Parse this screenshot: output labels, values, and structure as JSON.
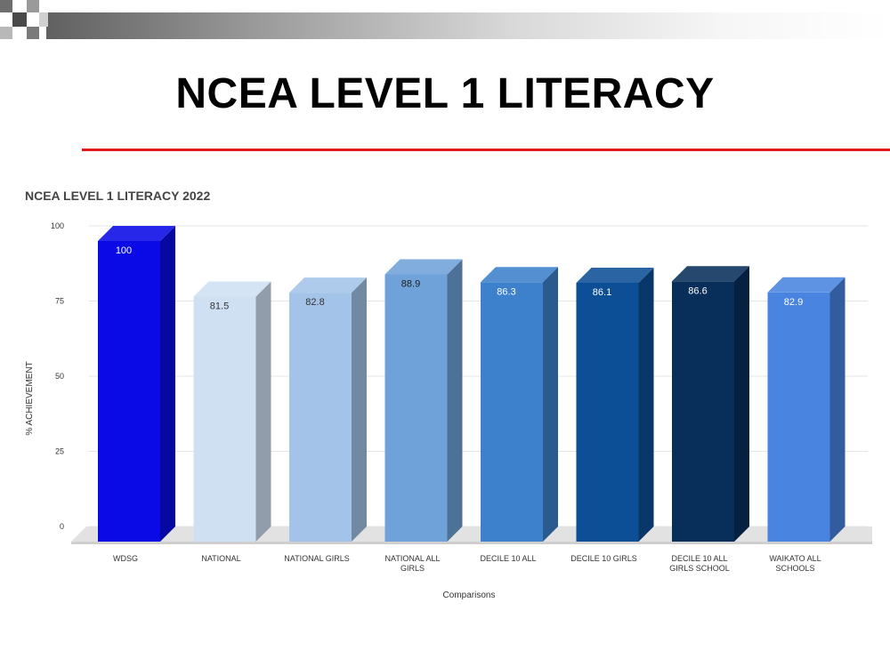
{
  "slide": {
    "title": "NCEA LEVEL 1 LITERACY",
    "accent_color": "#e11b1b"
  },
  "chart_data": {
    "type": "bar",
    "title": "NCEA LEVEL 1 LITERACY 2022",
    "xlabel": "Comparisons",
    "ylabel": "% ACHIEVEMENT",
    "ylim": [
      0,
      100
    ],
    "yticks": [
      0,
      25,
      50,
      75,
      100
    ],
    "grid": true,
    "categories": [
      [
        "WDSG"
      ],
      [
        "NATIONAL"
      ],
      [
        "NATIONAL GIRLS"
      ],
      [
        "NATIONAL ALL",
        "GIRLS"
      ],
      [
        "DECILE 10 ALL"
      ],
      [
        "DECILE 10 GIRLS"
      ],
      [
        "DECILE 10 ALL",
        "GIRLS SCHOOL"
      ],
      [
        "WAIKATO ALL",
        "SCHOOLS"
      ]
    ],
    "values": [
      100,
      81.5,
      82.8,
      88.9,
      86.3,
      86.1,
      86.6,
      82.9
    ],
    "value_labels": [
      "100",
      "81.5",
      "82.8",
      "88.9",
      "86.3",
      "86.1",
      "86.6",
      "82.9"
    ],
    "colors": [
      "#0a0ae6",
      "#cfe0f3",
      "#a3c4e8",
      "#6fa2d9",
      "#3d80cc",
      "#0d4f96",
      "#082e5a",
      "#4884e0"
    ],
    "label_colors": [
      "#ffffff",
      "#333333",
      "#333333",
      "#222222",
      "#ffffff",
      "#ffffff",
      "#ffffff",
      "#ffffff"
    ]
  }
}
